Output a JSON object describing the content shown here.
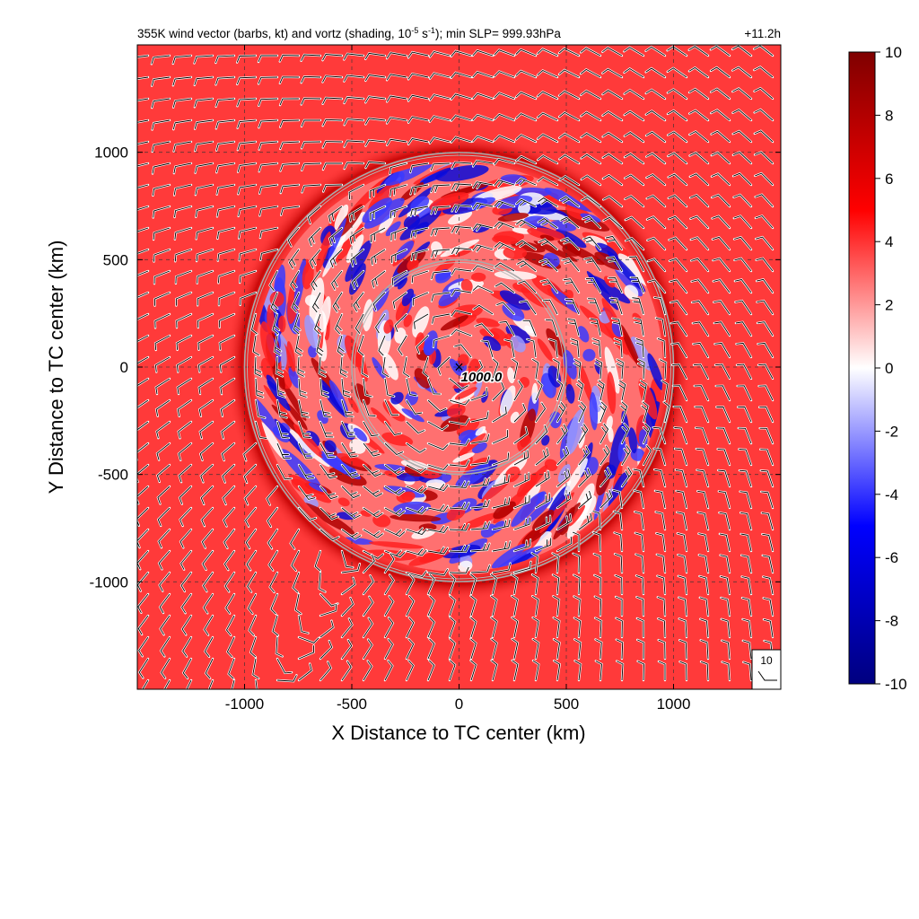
{
  "chart_data": {
    "type": "heatmap",
    "title": {
      "prefix": "355K wind vector (barbs, kt) and vortz (shading, 10",
      "exponent": "-5",
      "mid": " s",
      "exponent2": "-1",
      "suffix": "); min SLP= 999.93hPa"
    },
    "time_label": "+11.2h",
    "xlabel": "X Distance to TC center (km)",
    "ylabel": "Y Distance to TC center (km)",
    "xlim": [
      -1500,
      1500
    ],
    "ylim": [
      -1500,
      1500
    ],
    "x_ticks": [
      -1000,
      -500,
      0,
      500,
      1000
    ],
    "y_ticks": [
      -1000,
      -500,
      0,
      500,
      1000
    ],
    "x_tick_labels": [
      "-1000",
      "-500",
      "0",
      "500",
      "1000"
    ],
    "y_tick_labels": [
      "-1000",
      "-500",
      "0",
      "500",
      "1000"
    ],
    "grid": true,
    "range_rings_km": [
      500,
      1000
    ],
    "center_marker": {
      "x": 0,
      "y": 0,
      "symbol": "×",
      "label": "1000.0"
    },
    "colorbar": {
      "min": -10,
      "max": 10,
      "ticks": [
        10,
        8,
        6,
        4,
        2,
        0,
        -2,
        -4,
        -6,
        -8,
        -10
      ],
      "tick_labels": [
        "10",
        "8",
        "6",
        "4",
        "2",
        "0",
        "-2",
        "-4",
        "-6",
        "-8",
        "-10"
      ],
      "colors": [
        "#00007f",
        "#0000ff",
        "#ffffff",
        "#ff0000",
        "#7f0000"
      ]
    },
    "field_description": {
      "outer_value": 6,
      "ring_edge_value": 9,
      "core_value_range": [
        -10,
        10
      ]
    },
    "barb_reference": {
      "label": "10",
      "units": "kt"
    }
  }
}
